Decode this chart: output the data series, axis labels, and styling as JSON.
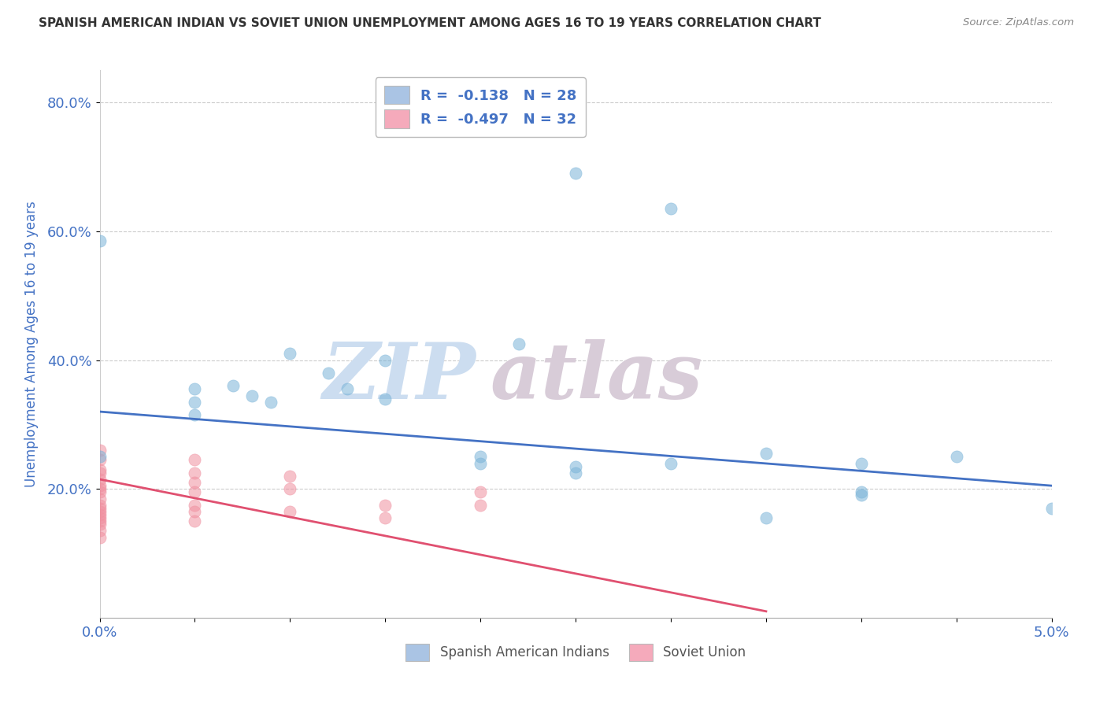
{
  "title": "SPANISH AMERICAN INDIAN VS SOVIET UNION UNEMPLOYMENT AMONG AGES 16 TO 19 YEARS CORRELATION CHART",
  "source": "Source: ZipAtlas.com",
  "ylabel": "Unemployment Among Ages 16 to 19 years",
  "y_ticks": [
    20,
    40,
    60,
    80
  ],
  "y_tick_labels": [
    "20.0%",
    "40.0%",
    "60.0%",
    "80.0%"
  ],
  "xlim": [
    0.0,
    0.05
  ],
  "ylim": [
    0.0,
    85.0
  ],
  "legend_entries": [
    {
      "color": "#aac4e4",
      "label": "R =  -0.138   N = 28"
    },
    {
      "color": "#f5aabb",
      "label": "R =  -0.497   N = 32"
    }
  ],
  "blue_scatter": [
    [
      0.0,
      58.5
    ],
    [
      0.005,
      35.5
    ],
    [
      0.005,
      33.5
    ],
    [
      0.005,
      31.5
    ],
    [
      0.007,
      36.0
    ],
    [
      0.008,
      34.5
    ],
    [
      0.009,
      33.5
    ],
    [
      0.01,
      41.0
    ],
    [
      0.012,
      38.0
    ],
    [
      0.013,
      35.5
    ],
    [
      0.015,
      40.0
    ],
    [
      0.015,
      34.0
    ],
    [
      0.02,
      25.0
    ],
    [
      0.02,
      24.0
    ],
    [
      0.022,
      42.5
    ],
    [
      0.025,
      69.0
    ],
    [
      0.025,
      23.5
    ],
    [
      0.025,
      22.5
    ],
    [
      0.03,
      24.0
    ],
    [
      0.03,
      63.5
    ],
    [
      0.035,
      25.5
    ],
    [
      0.035,
      15.5
    ],
    [
      0.04,
      19.5
    ],
    [
      0.04,
      19.0
    ],
    [
      0.04,
      24.0
    ],
    [
      0.045,
      25.0
    ],
    [
      0.05,
      17.0
    ],
    [
      0.0,
      25.0
    ]
  ],
  "pink_scatter": [
    [
      0.0,
      26.0
    ],
    [
      0.0,
      24.5
    ],
    [
      0.0,
      23.0
    ],
    [
      0.0,
      22.5
    ],
    [
      0.0,
      21.5
    ],
    [
      0.0,
      20.5
    ],
    [
      0.0,
      20.0
    ],
    [
      0.0,
      19.5
    ],
    [
      0.0,
      18.5
    ],
    [
      0.0,
      17.5
    ],
    [
      0.0,
      17.0
    ],
    [
      0.0,
      16.5
    ],
    [
      0.0,
      16.0
    ],
    [
      0.0,
      15.5
    ],
    [
      0.0,
      15.0
    ],
    [
      0.0,
      14.5
    ],
    [
      0.0,
      13.5
    ],
    [
      0.0,
      12.5
    ],
    [
      0.005,
      24.5
    ],
    [
      0.005,
      22.5
    ],
    [
      0.005,
      21.0
    ],
    [
      0.005,
      19.5
    ],
    [
      0.005,
      17.5
    ],
    [
      0.005,
      16.5
    ],
    [
      0.005,
      15.0
    ],
    [
      0.01,
      22.0
    ],
    [
      0.01,
      20.0
    ],
    [
      0.01,
      16.5
    ],
    [
      0.015,
      17.5
    ],
    [
      0.015,
      15.5
    ],
    [
      0.02,
      19.5
    ],
    [
      0.02,
      17.5
    ]
  ],
  "blue_line_x": [
    0.0,
    0.05
  ],
  "blue_line_y": [
    32.0,
    20.5
  ],
  "pink_line_x": [
    0.0,
    0.035
  ],
  "pink_line_y": [
    21.5,
    1.0
  ],
  "title_color": "#333333",
  "source_color": "#888888",
  "scatter_blue": "#7ab4d8",
  "scatter_pink": "#f090a0",
  "line_blue": "#4472c4",
  "line_pink": "#e05070",
  "grid_color": "#cccccc",
  "background_color": "#ffffff",
  "axis_label_color": "#4472c4",
  "tick_label_color": "#4472c4"
}
